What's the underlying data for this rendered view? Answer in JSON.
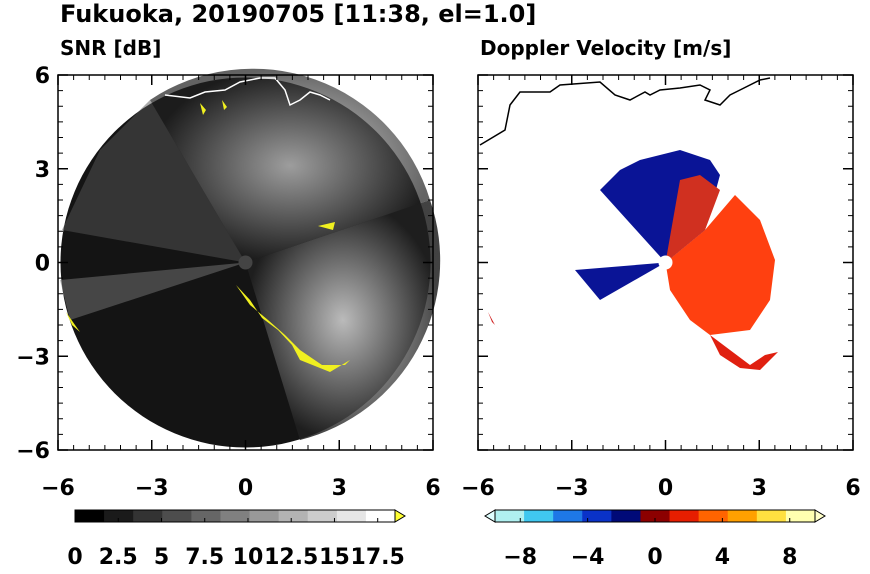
{
  "title": "Fukuoka, 20190705 [11:38, el=1.0]",
  "chart_data": [
    {
      "type": "radar-ppi",
      "subtitle": "SNR [dB]",
      "xlim": [
        -6,
        6
      ],
      "ylim": [
        -6,
        6
      ],
      "xticks": [
        {
          "value": -6,
          "label": "−6"
        },
        {
          "value": -3,
          "label": "−3"
        },
        0,
        3,
        6
      ],
      "yticks": [
        {
          "value": -6,
          "label": "−6"
        },
        {
          "value": -3,
          "label": "−3"
        },
        0,
        3,
        6
      ],
      "ytick_labels": true,
      "colorbar": {
        "lim": [
          0,
          18.5
        ],
        "ticks": [
          0,
          2.5,
          5,
          7.5,
          10,
          12.5,
          15,
          17.5
        ],
        "colors": [
          "#000000",
          "#1a1a1a",
          "#333333",
          "#4d4d4d",
          "#666666",
          "#808080",
          "#999999",
          "#b3b3b3",
          "#cccccc",
          "#e6e6e6",
          "#ffffff"
        ],
        "over_color": "#ffff33"
      }
    },
    {
      "type": "radar-ppi",
      "subtitle": "Doppler Velocity [m/s]",
      "xlim": [
        -6,
        6
      ],
      "ylim": [
        -6,
        6
      ],
      "xticks": [
        {
          "value": -6,
          "label": "−6"
        },
        {
          "value": -3,
          "label": "−3"
        },
        0,
        3,
        6
      ],
      "yticks": [
        {
          "value": -6,
          "label": "−6"
        },
        {
          "value": -3,
          "label": "−3"
        },
        0,
        3,
        6
      ],
      "ytick_labels": false,
      "colorbar": {
        "lim": [
          -9.5,
          9.5
        ],
        "ticks": [
          {
            "value": -8,
            "label": "−8"
          },
          {
            "value": -4,
            "label": "−4"
          },
          0,
          4,
          8
        ],
        "colors": [
          "#b0f0f0",
          "#40c8f0",
          "#1e78e6",
          "#0a32c8",
          "#000a78",
          "#8c0000",
          "#e61e00",
          "#ff6400",
          "#ffa000",
          "#ffe040",
          "#ffffb0"
        ],
        "under_color": "#e0ffff",
        "over_color": "#ffffc8"
      }
    }
  ]
}
